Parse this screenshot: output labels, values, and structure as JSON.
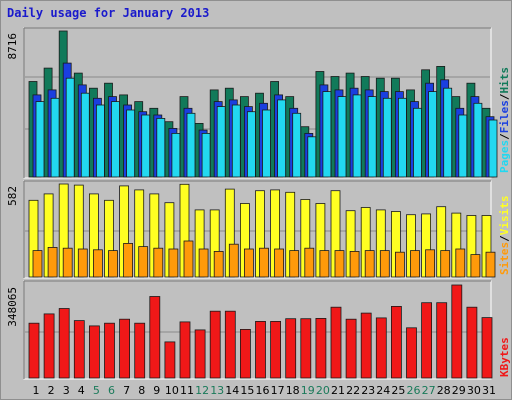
{
  "title": "Daily usage for January 2013",
  "colors": {
    "hits": "#117a5a",
    "files": "#1a3fe0",
    "pages": "#22d8f0",
    "visits": "#ffff22",
    "sites": "#ff9a0a",
    "kbytes": "#f01818",
    "title": "#1a1acc",
    "weekend": "#1a7a5a",
    "weekday": "#000000"
  },
  "chart_data": [
    {
      "type": "bar",
      "panel": "hits-files-pages",
      "max_label": "8716",
      "categories": [
        "1",
        "2",
        "3",
        "4",
        "5",
        "6",
        "7",
        "8",
        "9",
        "10",
        "11",
        "12",
        "13",
        "14",
        "15",
        "16",
        "17",
        "18",
        "19",
        "20",
        "21",
        "22",
        "23",
        "24",
        "25",
        "26",
        "27",
        "28",
        "29",
        "30",
        "31"
      ],
      "ylim": [
        0,
        8716
      ],
      "series": [
        {
          "name": "Hits",
          "values": [
            5700,
            6500,
            8716,
            6200,
            5300,
            5600,
            4900,
            4500,
            4100,
            3300,
            4800,
            3200,
            5200,
            5300,
            4800,
            5000,
            5700,
            4800,
            3000,
            6300,
            6000,
            6200,
            6000,
            5900,
            5900,
            5200,
            6400,
            6600,
            4800,
            5600,
            4100
          ]
        },
        {
          "name": "Files",
          "values": [
            4900,
            5200,
            6800,
            5500,
            4700,
            4800,
            4300,
            3900,
            3700,
            2900,
            4100,
            2800,
            4500,
            4600,
            4200,
            4400,
            4900,
            4100,
            2600,
            5500,
            5200,
            5300,
            5200,
            5100,
            5100,
            4500,
            5600,
            5800,
            4100,
            4800,
            3600
          ]
        },
        {
          "name": "Pages",
          "values": [
            4500,
            4700,
            5900,
            5000,
            4300,
            4500,
            4000,
            3700,
            3500,
            2600,
            3800,
            2600,
            4200,
            4300,
            3900,
            4000,
            4600,
            3800,
            2400,
            5100,
            4800,
            4900,
            4800,
            4700,
            4700,
            4100,
            5100,
            5300,
            3700,
            4400,
            3400
          ]
        }
      ]
    },
    {
      "type": "bar",
      "panel": "visits-sites",
      "max_label": "582",
      "categories": [
        "1",
        "2",
        "3",
        "4",
        "5",
        "6",
        "7",
        "8",
        "9",
        "10",
        "11",
        "12",
        "13",
        "14",
        "15",
        "16",
        "17",
        "18",
        "19",
        "20",
        "21",
        "22",
        "23",
        "24",
        "25",
        "26",
        "27",
        "28",
        "29",
        "30",
        "31"
      ],
      "ylim": [
        0,
        582
      ],
      "series": [
        {
          "name": "Visits",
          "values": [
            480,
            520,
            582,
            575,
            520,
            480,
            570,
            545,
            520,
            465,
            580,
            420,
            420,
            550,
            460,
            540,
            545,
            530,
            485,
            460,
            540,
            415,
            435,
            420,
            410,
            390,
            395,
            440,
            400,
            385,
            385
          ]
        },
        {
          "name": "Sites",
          "values": [
            165,
            185,
            180,
            175,
            170,
            165,
            210,
            190,
            180,
            175,
            225,
            175,
            160,
            205,
            175,
            180,
            175,
            165,
            180,
            165,
            165,
            160,
            165,
            165,
            155,
            165,
            170,
            165,
            175,
            140,
            155
          ]
        }
      ]
    },
    {
      "type": "bar",
      "panel": "kbytes",
      "max_label": "348065",
      "categories": [
        "1",
        "2",
        "3",
        "4",
        "5",
        "6",
        "7",
        "8",
        "9",
        "10",
        "11",
        "12",
        "13",
        "14",
        "15",
        "16",
        "17",
        "18",
        "19",
        "20",
        "21",
        "22",
        "23",
        "24",
        "25",
        "26",
        "27",
        "28",
        "29",
        "30",
        "31"
      ],
      "ylim": [
        0,
        348065
      ],
      "series": [
        {
          "name": "KBytes",
          "values": [
            205000,
            240000,
            260000,
            215000,
            195000,
            205000,
            220000,
            205000,
            305000,
            135000,
            210000,
            180000,
            250000,
            250000,
            182000,
            212000,
            212000,
            222000,
            222000,
            223000,
            265000,
            220000,
            243000,
            225000,
            268000,
            188000,
            282000,
            282000,
            348065,
            265000,
            226000
          ]
        }
      ]
    }
  ],
  "legend": {
    "top": [
      "Pages",
      "/",
      "Files",
      "/",
      "Hits"
    ],
    "middle": [
      "Sites",
      "/",
      "Visits"
    ],
    "bottom": [
      "KBytes"
    ]
  },
  "weekend_days": [
    "5",
    "6",
    "12",
    "13",
    "19",
    "20",
    "26",
    "27"
  ]
}
